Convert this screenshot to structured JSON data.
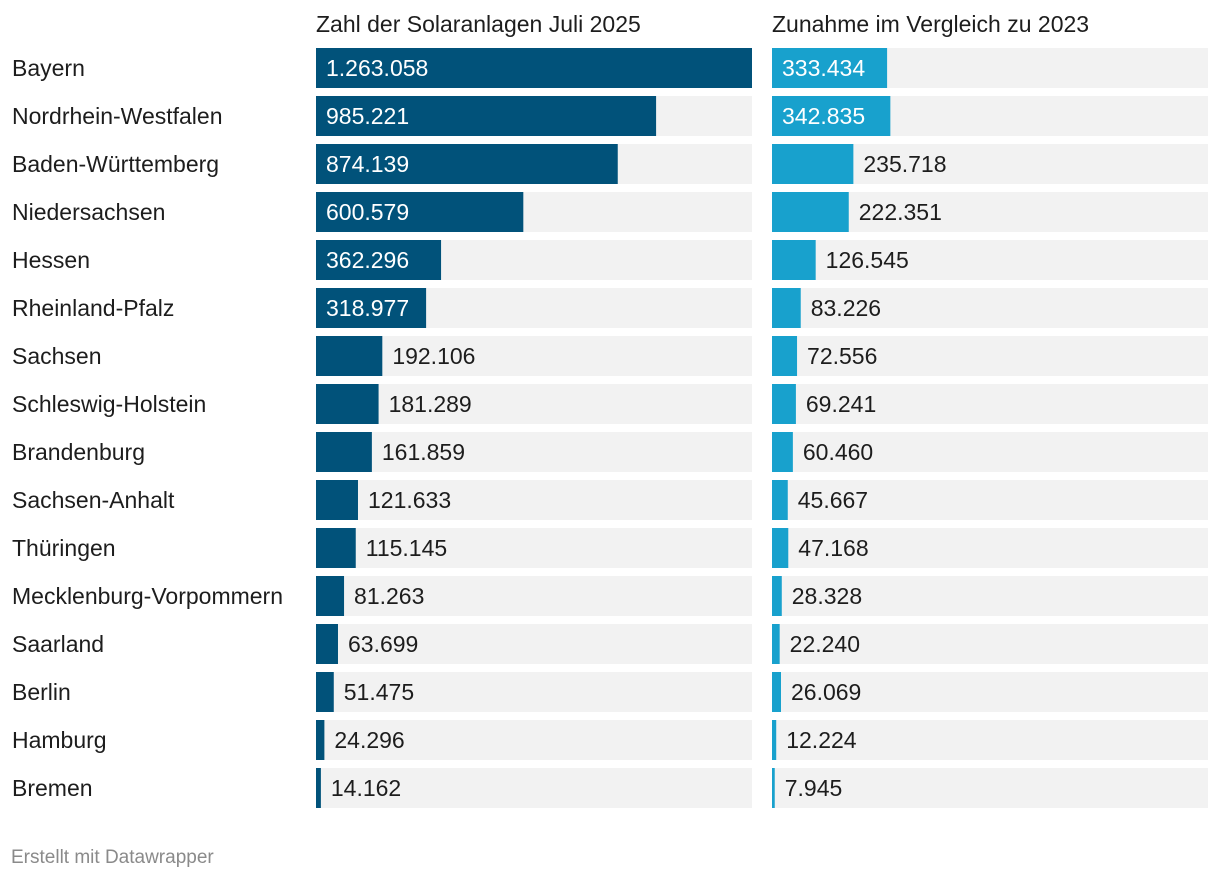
{
  "footer": "Erstellt mit Datawrapper",
  "colors": {
    "col1_bar": "#01527a",
    "col2_bar": "#18a1cd",
    "track": "#f2f2f2",
    "label_inside": "#ffffff",
    "label_outside": "#1d1d1d"
  },
  "chart_data": {
    "type": "bar",
    "orientation": "horizontal",
    "categories": [
      "Bayern",
      "Nordrhein-Westfalen",
      "Baden-Württemberg",
      "Niedersachsen",
      "Hessen",
      "Rheinland-Pfalz",
      "Sachsen",
      "Schleswig-Holstein",
      "Brandenburg",
      "Sachsen-Anhalt",
      "Thüringen",
      "Mecklenburg-Vorpommern",
      "Saarland",
      "Berlin",
      "Hamburg",
      "Bremen"
    ],
    "series": [
      {
        "name": "Zahl der Solaranlagen Juli 2025",
        "values": [
          1263058,
          985221,
          874139,
          600579,
          362296,
          318977,
          192106,
          181289,
          161859,
          121633,
          115145,
          81263,
          63699,
          51475,
          24296,
          14162
        ],
        "labels": [
          "1.263.058",
          "985.221",
          "874.139",
          "600.579",
          "362.296",
          "318.977",
          "192.106",
          "181.289",
          "161.859",
          "121.633",
          "115.145",
          "81.263",
          "63.699",
          "51.475",
          "24.296",
          "14.162"
        ],
        "xlim": [
          0,
          1263058
        ]
      },
      {
        "name": "Zunahme im Vergleich zu 2023",
        "values": [
          333434,
          342835,
          235718,
          222351,
          126545,
          83226,
          72556,
          69241,
          60460,
          45667,
          47168,
          28328,
          22240,
          26069,
          12224,
          7945
        ],
        "labels": [
          "333.434",
          "342.835",
          "235.718",
          "222.351",
          "126.545",
          "83.226",
          "72.556",
          "69.241",
          "60.460",
          "45.667",
          "47.168",
          "28.328",
          "22.240",
          "26.069",
          "12.224",
          "7.945"
        ],
        "xlim": [
          0,
          1263058
        ]
      }
    ],
    "grid": false,
    "legend": "none"
  }
}
